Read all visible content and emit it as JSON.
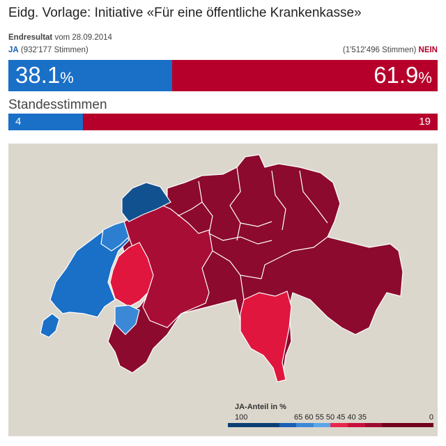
{
  "header": {
    "title": "Eidg. Vorlage: Initiative «Für eine öffentliche Krankenkasse»",
    "result_label": "Endresultat",
    "result_date": "vom 28.09.2014"
  },
  "ja": {
    "label": "JA",
    "votes": "(932'177 Stimmen)",
    "percent_value": "38.1",
    "percent_unit": "%",
    "share": 0.381,
    "standesstimmen": "4",
    "standesstimmen_count": 4,
    "color": "#1a6fc7"
  },
  "nein": {
    "label": "NEIN",
    "votes": "(1'512'496 Stimmen)",
    "percent_value": "61.9",
    "percent_unit": "%",
    "share": 0.619,
    "standesstimmen": "19",
    "standesstimmen_count": 19,
    "color": "#b6002b"
  },
  "standesstimmen_title": "Standesstimmen",
  "map": {
    "background_color": "#dcd7cd",
    "border_color": "#ffffff",
    "legend": {
      "title": "JA-Anteil in %",
      "tick_labels": [
        "100",
        "65 60 55 50 45 40 35",
        "0"
      ],
      "colors": [
        "#0b3f73",
        "#1a5fb4",
        "#3b88d6",
        "#5aa7e8",
        "#e8264d",
        "#c8103a",
        "#9e0a33",
        "#72001f"
      ]
    }
  }
}
